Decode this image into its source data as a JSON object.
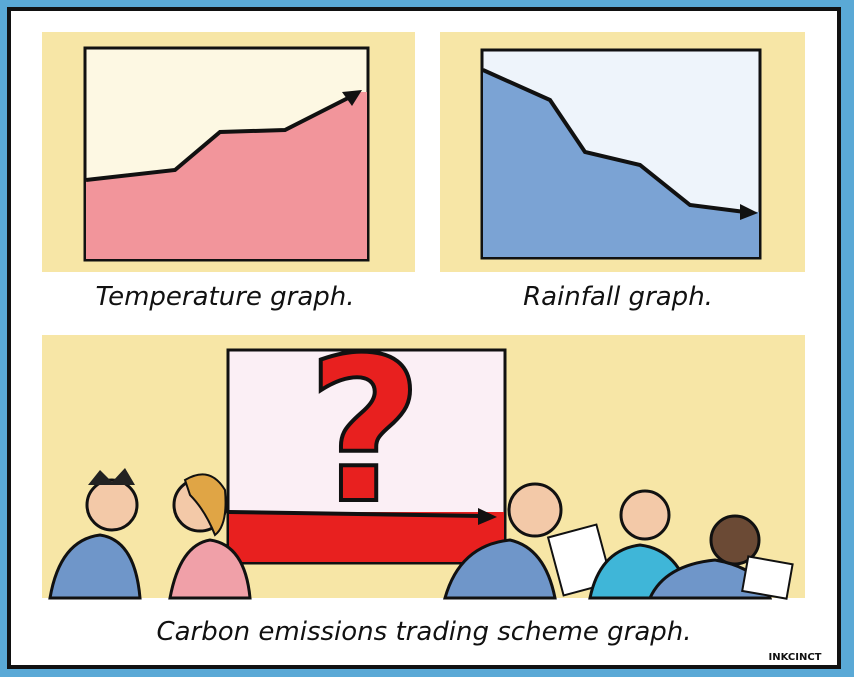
{
  "panels": [
    {
      "caption": "Temperature graph."
    },
    {
      "caption": "Rainfall graph."
    },
    {
      "caption": "Carbon emissions trading scheme graph.",
      "symbol": "?"
    }
  ],
  "signature": "INKCINCT"
}
